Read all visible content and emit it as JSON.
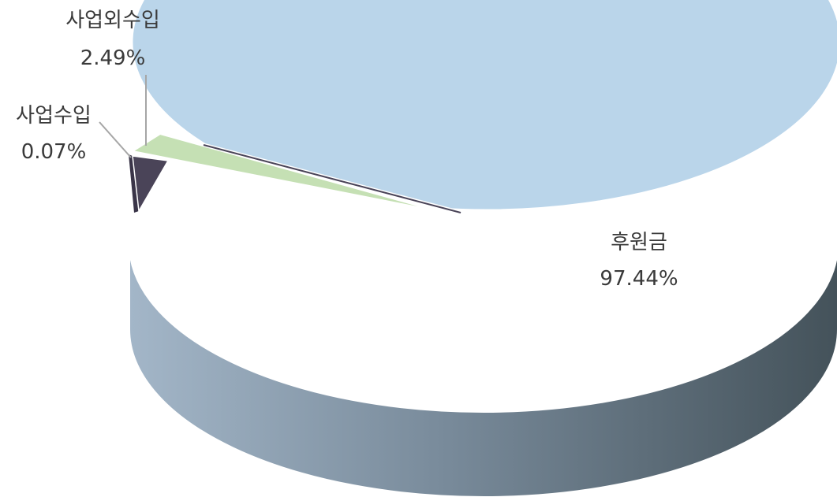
{
  "chart_data": {
    "type": "pie",
    "style": "3d-exploded",
    "series": [
      {
        "label": "후원금",
        "value": 97.44,
        "value_label": "97.44%",
        "color": "#bad5ea",
        "side_color_dark": "#44525a",
        "side_color_light": "#a3b6c8"
      },
      {
        "label": "사업수입",
        "value": 0.07,
        "value_label": "0.07%",
        "color": "#4a4458"
      },
      {
        "label": "사업외수입",
        "value": 2.49,
        "value_label": "2.49%",
        "color": "#c5e0b4"
      }
    ]
  }
}
